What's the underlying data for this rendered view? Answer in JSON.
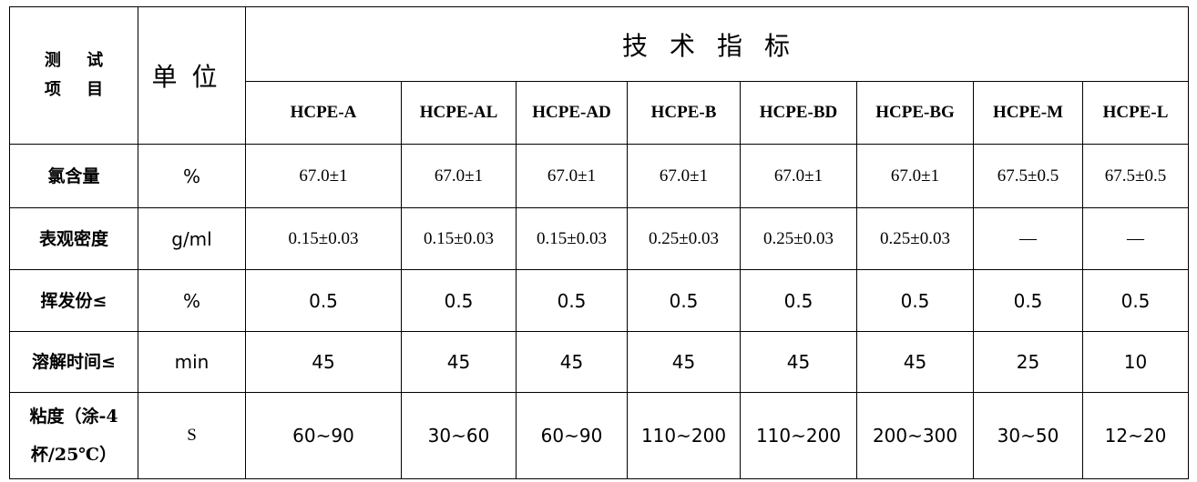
{
  "table": {
    "header": {
      "item": [
        "测 试",
        "项 目"
      ],
      "unit": "单位",
      "spec": "技术指标",
      "models": [
        "HCPE-A",
        "HCPE-AL",
        "HCPE-AD",
        "HCPE-B",
        "HCPE-BD",
        "HCPE-BG",
        "HCPE-M",
        "HCPE-L"
      ]
    },
    "rows": [
      {
        "label": [
          "氯含量"
        ],
        "unit": "%",
        "values": [
          "67.0±1",
          "67.0±1",
          "67.0±1",
          "67.0±1",
          "67.0±1",
          "67.0±1",
          "67.5±0.5",
          "67.5±0.5"
        ]
      },
      {
        "label": [
          "表观密度"
        ],
        "unit": "g/ml",
        "values": [
          "0.15±0.03",
          "0.15±0.03",
          "0.15±0.03",
          "0.25±0.03",
          "0.25±0.03",
          "0.25±0.03",
          "—",
          "—"
        ]
      },
      {
        "label": [
          "挥发份≤"
        ],
        "unit": "%",
        "values": [
          "0.5",
          "0.5",
          "0.5",
          "0.5",
          "0.5",
          "0.5",
          "0.5",
          "0.5"
        ]
      },
      {
        "label": [
          "溶解时间≤"
        ],
        "unit": "min",
        "values": [
          "45",
          "45",
          "45",
          "45",
          "45",
          "45",
          "25",
          "10"
        ]
      },
      {
        "label": [
          "粘度（涂-4",
          "杯/25℃）"
        ],
        "unit": "S",
        "values": [
          "60~90",
          "30~60",
          "60~90",
          "110~200",
          "110~200",
          "200~300",
          "30~50",
          "12~20"
        ]
      }
    ]
  }
}
